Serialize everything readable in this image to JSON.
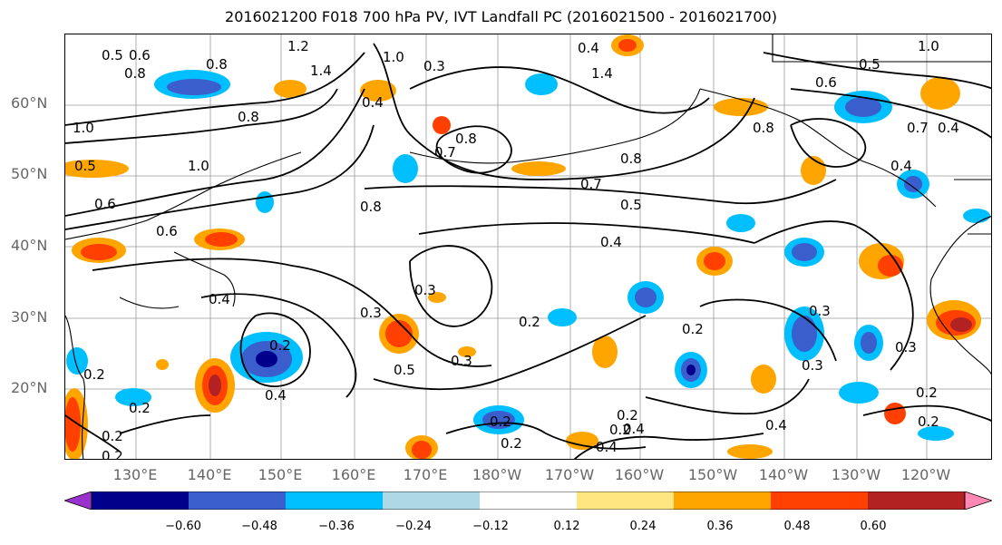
{
  "title": "2016021200 F018 700 hPa PV, IVT Landfall PC (2016021500 - 2016021700)",
  "latitude_labels": [
    "60°N",
    "50°N",
    "40°N",
    "30°N",
    "20°N"
  ],
  "longitude_labels": [
    "130°E",
    "140°E",
    "150°E",
    "160°E",
    "170°E",
    "180°W",
    "170°W",
    "160°W",
    "150°W",
    "140°W",
    "130°W",
    "120°W"
  ],
  "colorbar": {
    "colors": [
      "#9932cc",
      "#00008b",
      "#3a5fcd",
      "#00bfff",
      "#add8e6",
      "#ffffff",
      "#ffe680",
      "#ffa500",
      "#ff4000",
      "#b22222",
      "#ff88b4"
    ],
    "tick_labels": [
      "−0.60",
      "−0.48",
      "−0.36",
      "−0.24",
      "−0.12",
      "0.12",
      "0.24",
      "0.36",
      "0.48",
      "0.60"
    ]
  },
  "contour_labels": [
    "0.5",
    "0.6",
    "0.8",
    "0.8",
    "1.2",
    "1.4",
    "1.0",
    "1.0",
    "0.3",
    "0.4",
    "1.4",
    "0.8",
    "0.4",
    "1.0",
    "0.5",
    "0.6",
    "0.8",
    "0.8",
    "0.7",
    "1.0",
    "0.5",
    "0.6",
    "0.7",
    "0.8",
    "0.8",
    "0.7",
    "0.5",
    "0.4",
    "0.6",
    "0.4",
    "0.4",
    "0.4",
    "0.3",
    "0.3",
    "0.2",
    "0.2",
    "0.4",
    "0.2",
    "0.3",
    "0.5",
    "0.3",
    "0.2",
    "0.2",
    "0.2",
    "0.3",
    "0.2",
    "0.4",
    "0.2",
    "0.2",
    "0.3",
    "0.2",
    "0.2",
    "0.4",
    "0.4",
    "0.2",
    "0.2"
  ]
}
